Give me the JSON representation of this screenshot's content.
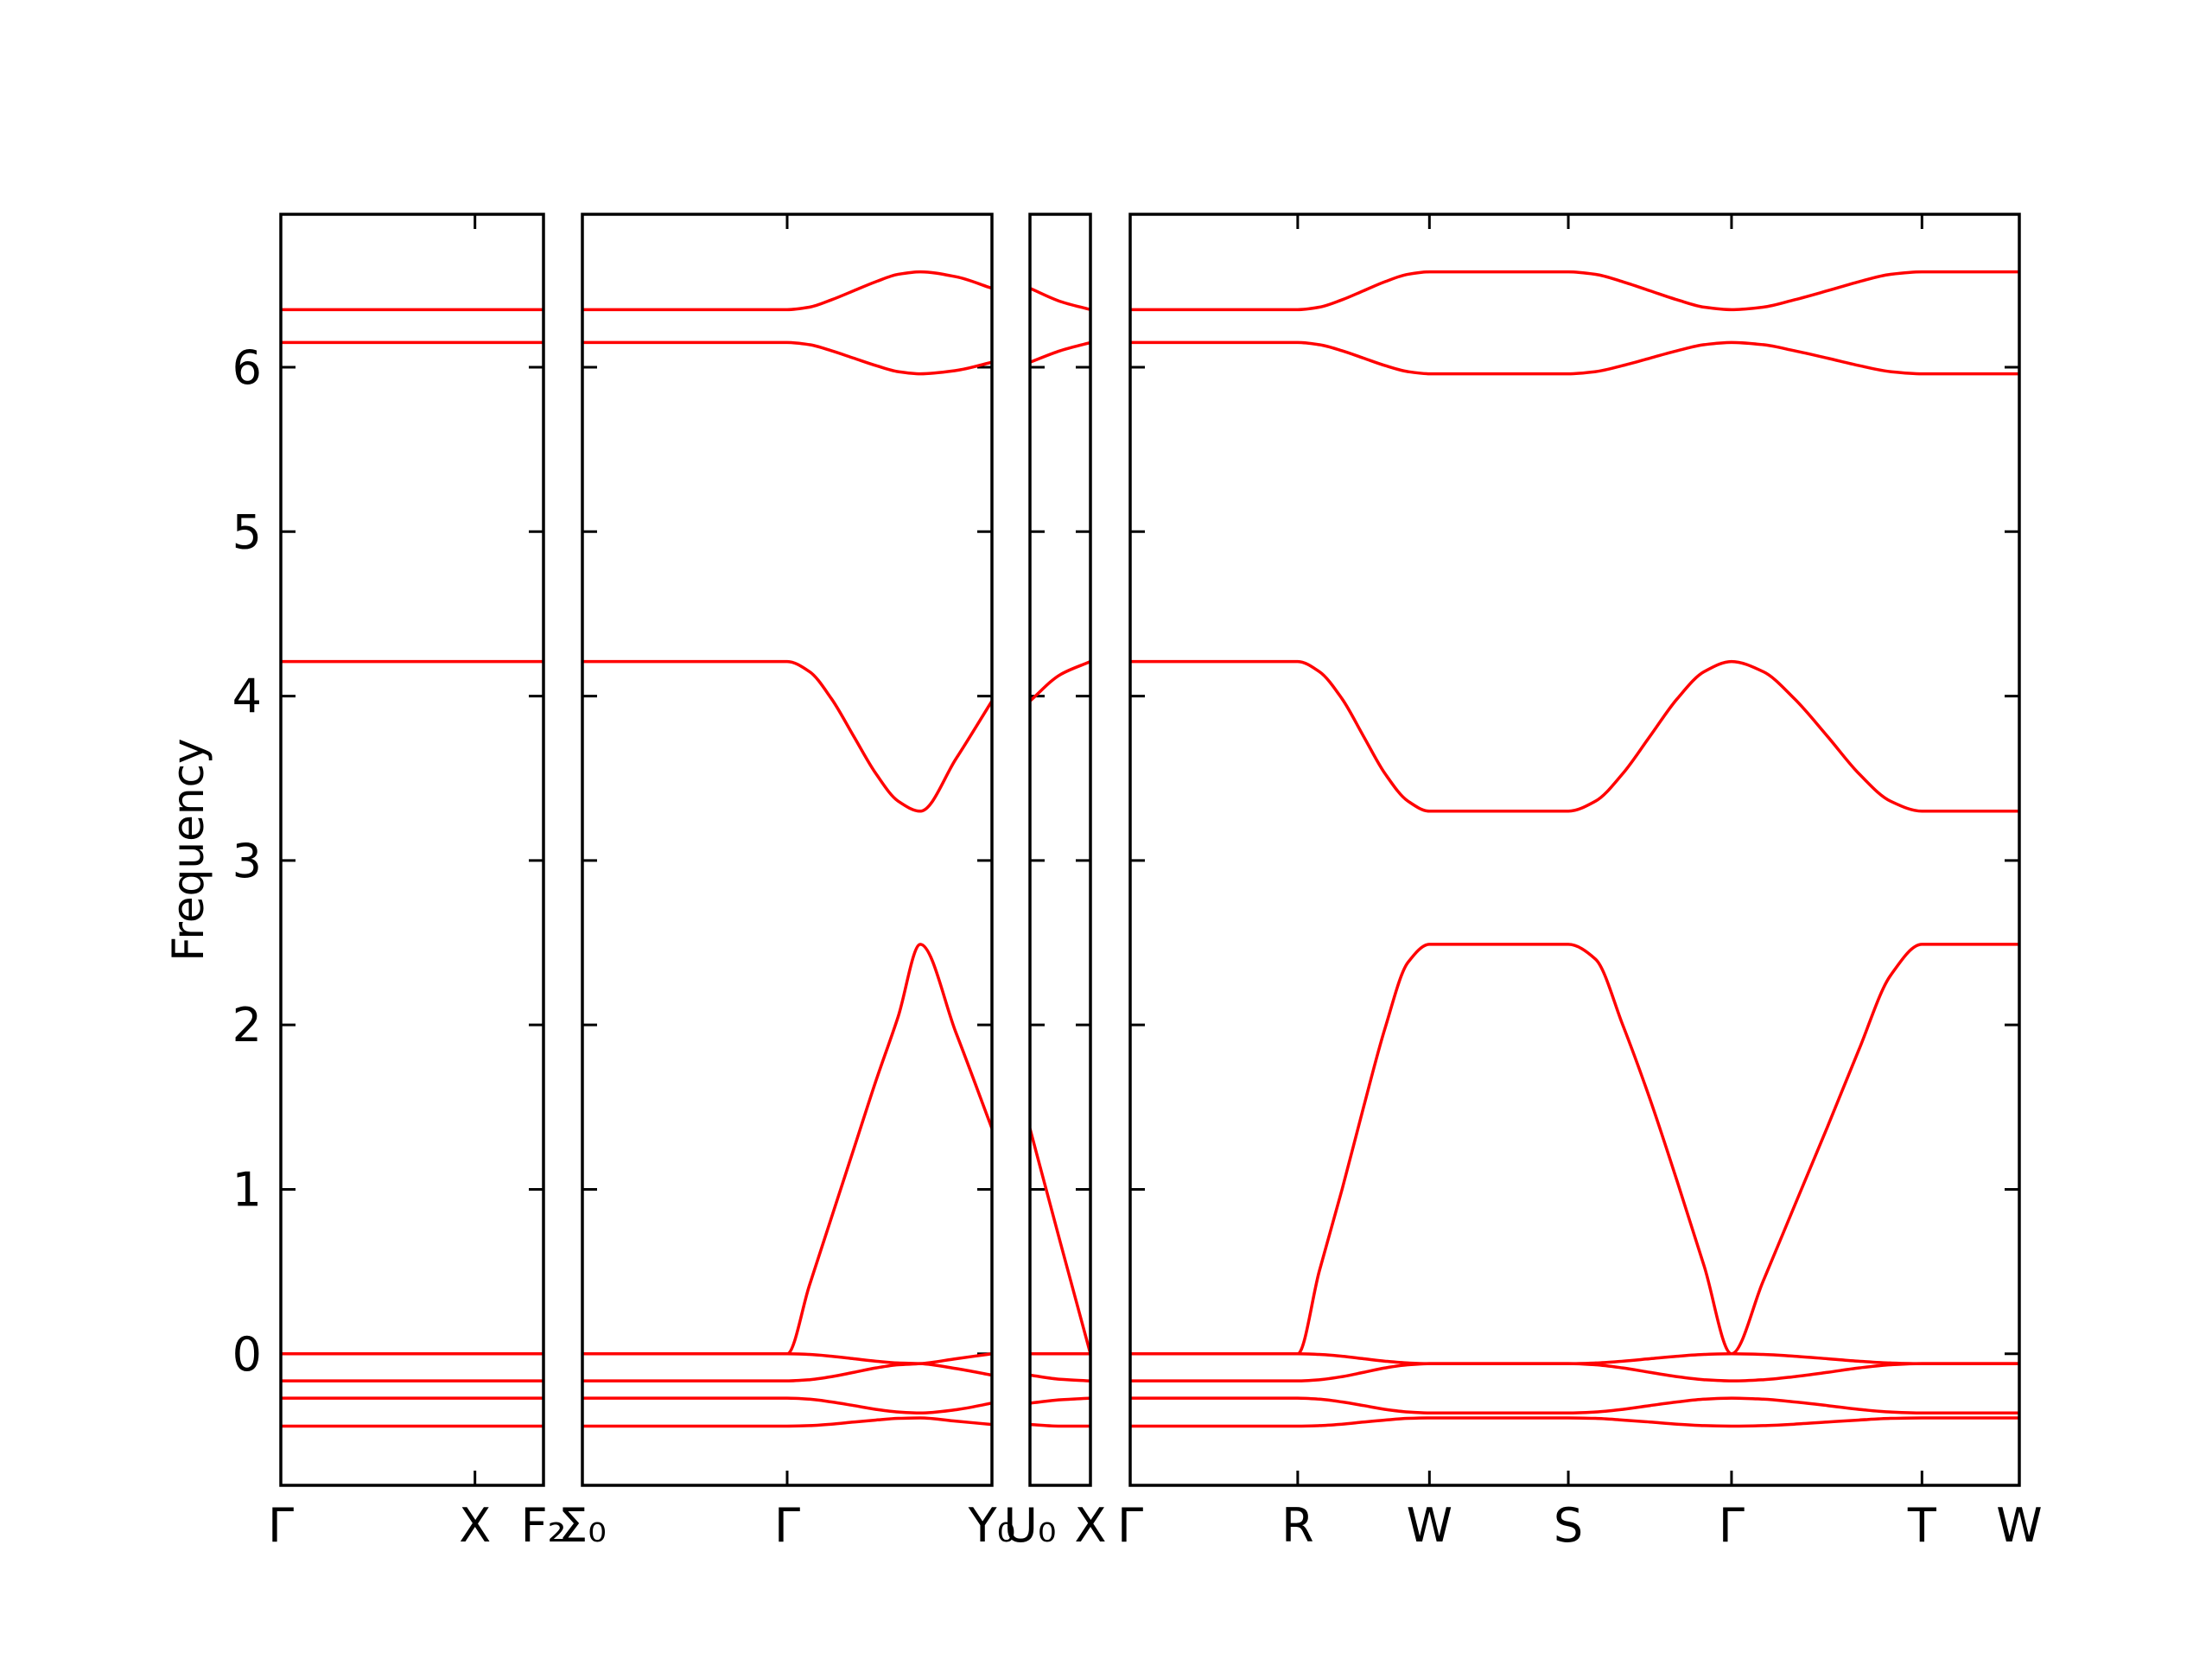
{
  "chart_data": [
    {
      "type": "line",
      "ylabel": "Frequency",
      "x": [
        0,
        1.84
      ],
      "xlim": [
        0,
        1.84
      ],
      "xticks": [
        {
          "value": 0,
          "label": "Γ"
        },
        {
          "value": 1.36,
          "label": "X"
        },
        {
          "value": 1.84,
          "label": "F₂"
        }
      ],
      "ylim": [
        -0.8,
        6.93
      ],
      "yticks": [
        0,
        1,
        2,
        3,
        4,
        5,
        6
      ],
      "series": [
        {
          "color": "#ff0000",
          "values": [
            6.35,
            6.35
          ]
        },
        {
          "color": "#ff0000",
          "values": [
            6.15,
            6.15
          ]
        },
        {
          "color": "#ff0000",
          "values": [
            4.21,
            4.21
          ]
        },
        {
          "color": "#ff0000",
          "values": [
            0,
            0
          ]
        },
        {
          "color": "#ff0000",
          "values": [
            0,
            0
          ]
        },
        {
          "color": "#ff0000",
          "values": [
            -0.165,
            -0.165
          ]
        },
        {
          "color": "#ff0000",
          "values": [
            -0.27,
            -0.27
          ]
        },
        {
          "color": "#ff0000",
          "values": [
            -0.44,
            -0.44
          ]
        }
      ]
    },
    {
      "type": "line",
      "x": [
        0,
        1.43,
        1.585,
        1.74,
        1.895,
        2.05,
        2.205,
        2.36,
        2.61,
        2.86
      ],
      "xlim": [
        0,
        2.86
      ],
      "xticks": [
        {
          "value": 0,
          "label": "Σ₀"
        },
        {
          "value": 1.43,
          "label": "Γ"
        },
        {
          "value": 2.86,
          "label": "Y₀"
        }
      ],
      "ylim": [
        -0.8,
        6.93
      ],
      "yticks": [
        0,
        1,
        2,
        3,
        4,
        5,
        6
      ],
      "series": [
        {
          "color": "#ff0000",
          "values": [
            6.35,
            6.35,
            6.365,
            6.41,
            6.465,
            6.52,
            6.565,
            6.58,
            6.55,
            6.48
          ]
        },
        {
          "color": "#ff0000",
          "values": [
            6.15,
            6.15,
            6.137,
            6.1,
            6.055,
            6.01,
            5.973,
            5.96,
            5.98,
            6.03
          ]
        },
        {
          "color": "#ff0000",
          "values": [
            4.21,
            4.21,
            4.149,
            3.983,
            3.755,
            3.528,
            3.361,
            3.3,
            3.62,
            3.97
          ]
        },
        {
          "color": "#ff0000",
          "values": [
            0,
            0,
            0.415,
            0.83,
            1.245,
            1.66,
            2.05,
            2.49,
            1.95,
            1.37
          ]
        },
        {
          "color": "#ff0000",
          "values": [
            0,
            0,
            -0.004,
            -0.015,
            -0.03,
            -0.045,
            -0.056,
            -0.06,
            -0.09,
            -0.13
          ]
        },
        {
          "color": "#ff0000",
          "values": [
            -0.165,
            -0.165,
            -0.158,
            -0.139,
            -0.113,
            -0.086,
            -0.067,
            -0.06,
            -0.03,
            0
          ]
        },
        {
          "color": "#ff0000",
          "values": [
            -0.27,
            -0.27,
            -0.276,
            -0.293,
            -0.315,
            -0.338,
            -0.354,
            -0.36,
            -0.34,
            -0.3
          ]
        },
        {
          "color": "#ff0000",
          "values": [
            -0.44,
            -0.44,
            -0.437,
            -0.428,
            -0.415,
            -0.403,
            -0.393,
            -0.39,
            -0.41,
            -0.43
          ]
        }
      ]
    },
    {
      "type": "line",
      "x": [
        0,
        0.21,
        0.42
      ],
      "xlim": [
        0,
        0.42
      ],
      "xticks": [
        {
          "value": 0,
          "label": "U₀"
        },
        {
          "value": 0.42,
          "label": "X"
        }
      ],
      "ylim": [
        -0.8,
        6.93
      ],
      "yticks": [
        0,
        1,
        2,
        3,
        4,
        5,
        6
      ],
      "series": [
        {
          "color": "#ff0000",
          "values": [
            6.48,
            6.4,
            6.35
          ]
        },
        {
          "color": "#ff0000",
          "values": [
            6.03,
            6.1,
            6.15
          ]
        },
        {
          "color": "#ff0000",
          "values": [
            3.97,
            4.13,
            4.21
          ]
        },
        {
          "color": "#ff0000",
          "values": [
            1.37,
            0.68,
            0
          ]
        },
        {
          "color": "#ff0000",
          "values": [
            -0.13,
            -0.155,
            -0.165
          ]
        },
        {
          "color": "#ff0000",
          "values": [
            0,
            0,
            0
          ]
        },
        {
          "color": "#ff0000",
          "values": [
            -0.3,
            -0.28,
            -0.27
          ]
        },
        {
          "color": "#ff0000",
          "values": [
            -0.43,
            -0.44,
            -0.44
          ]
        }
      ]
    },
    {
      "type": "line",
      "x": [
        0,
        1.17,
        1.32,
        1.48,
        1.63,
        1.78,
        1.94,
        2.09,
        3.06,
        3.25,
        3.44,
        3.63,
        3.82,
        4.01,
        4.2,
        4.42,
        4.64,
        4.87,
        5.09,
        5.31,
        5.53,
        6.21
      ],
      "xlim": [
        0,
        6.21
      ],
      "xticks": [
        {
          "value": 0,
          "label": "Γ"
        },
        {
          "value": 1.17,
          "label": "R"
        },
        {
          "value": 2.09,
          "label": "W"
        },
        {
          "value": 3.06,
          "label": "S"
        },
        {
          "value": 4.2,
          "label": "Γ"
        },
        {
          "value": 5.53,
          "label": "T"
        },
        {
          "value": 6.21,
          "label": "W"
        }
      ],
      "ylim": [
        -0.8,
        6.93
      ],
      "yticks": [
        0,
        1,
        2,
        3,
        4,
        5,
        6
      ],
      "series": [
        {
          "color": "#ff0000",
          "values": [
            6.35,
            6.35,
            6.365,
            6.41,
            6.465,
            6.52,
            6.565,
            6.58,
            6.58,
            6.565,
            6.52,
            6.465,
            6.41,
            6.365,
            6.35,
            6.365,
            6.41,
            6.465,
            6.52,
            6.565,
            6.58,
            6.58
          ]
        },
        {
          "color": "#ff0000",
          "values": [
            6.15,
            6.15,
            6.137,
            6.1,
            6.055,
            6.01,
            5.973,
            5.96,
            5.96,
            5.973,
            6.01,
            6.055,
            6.1,
            6.137,
            6.15,
            6.137,
            6.1,
            6.055,
            6.01,
            5.973,
            5.96,
            5.96
          ]
        },
        {
          "color": "#ff0000",
          "values": [
            4.21,
            4.21,
            4.149,
            3.983,
            3.755,
            3.528,
            3.361,
            3.3,
            3.3,
            3.361,
            3.528,
            3.755,
            3.983,
            4.149,
            4.21,
            4.149,
            3.983,
            3.755,
            3.528,
            3.361,
            3.3,
            3.3
          ]
        },
        {
          "color": "#ff0000",
          "values": [
            0,
            0,
            0.5,
            1.0,
            1.5,
            1.98,
            2.38,
            2.49,
            2.49,
            2.4,
            2.0,
            1.55,
            1.05,
            0.53,
            0,
            0.44,
            0.9,
            1.38,
            1.85,
            2.3,
            2.49,
            2.49
          ]
        },
        {
          "color": "#ff0000",
          "values": [
            0,
            0,
            -0.004,
            -0.015,
            -0.03,
            -0.045,
            -0.056,
            -0.06,
            -0.06,
            -0.056,
            -0.045,
            -0.03,
            -0.015,
            -0.004,
            0,
            -0.004,
            -0.015,
            -0.03,
            -0.045,
            -0.056,
            -0.06,
            -0.06
          ]
        },
        {
          "color": "#ff0000",
          "values": [
            -0.165,
            -0.165,
            -0.158,
            -0.139,
            -0.113,
            -0.086,
            -0.067,
            -0.06,
            -0.06,
            -0.067,
            -0.086,
            -0.113,
            -0.139,
            -0.158,
            -0.165,
            -0.158,
            -0.139,
            -0.113,
            -0.086,
            -0.067,
            -0.06,
            -0.06
          ]
        },
        {
          "color": "#ff0000",
          "values": [
            -0.27,
            -0.27,
            -0.276,
            -0.293,
            -0.315,
            -0.338,
            -0.354,
            -0.36,
            -0.36,
            -0.354,
            -0.338,
            -0.315,
            -0.293,
            -0.276,
            -0.27,
            -0.276,
            -0.293,
            -0.315,
            -0.338,
            -0.354,
            -0.36,
            -0.36
          ]
        },
        {
          "color": "#ff0000",
          "values": [
            -0.44,
            -0.44,
            -0.437,
            -0.428,
            -0.415,
            -0.403,
            -0.393,
            -0.39,
            -0.39,
            -0.393,
            -0.403,
            -0.415,
            -0.428,
            -0.437,
            -0.44,
            -0.437,
            -0.428,
            -0.415,
            -0.403,
            -0.393,
            -0.39,
            -0.39
          ]
        }
      ]
    }
  ]
}
